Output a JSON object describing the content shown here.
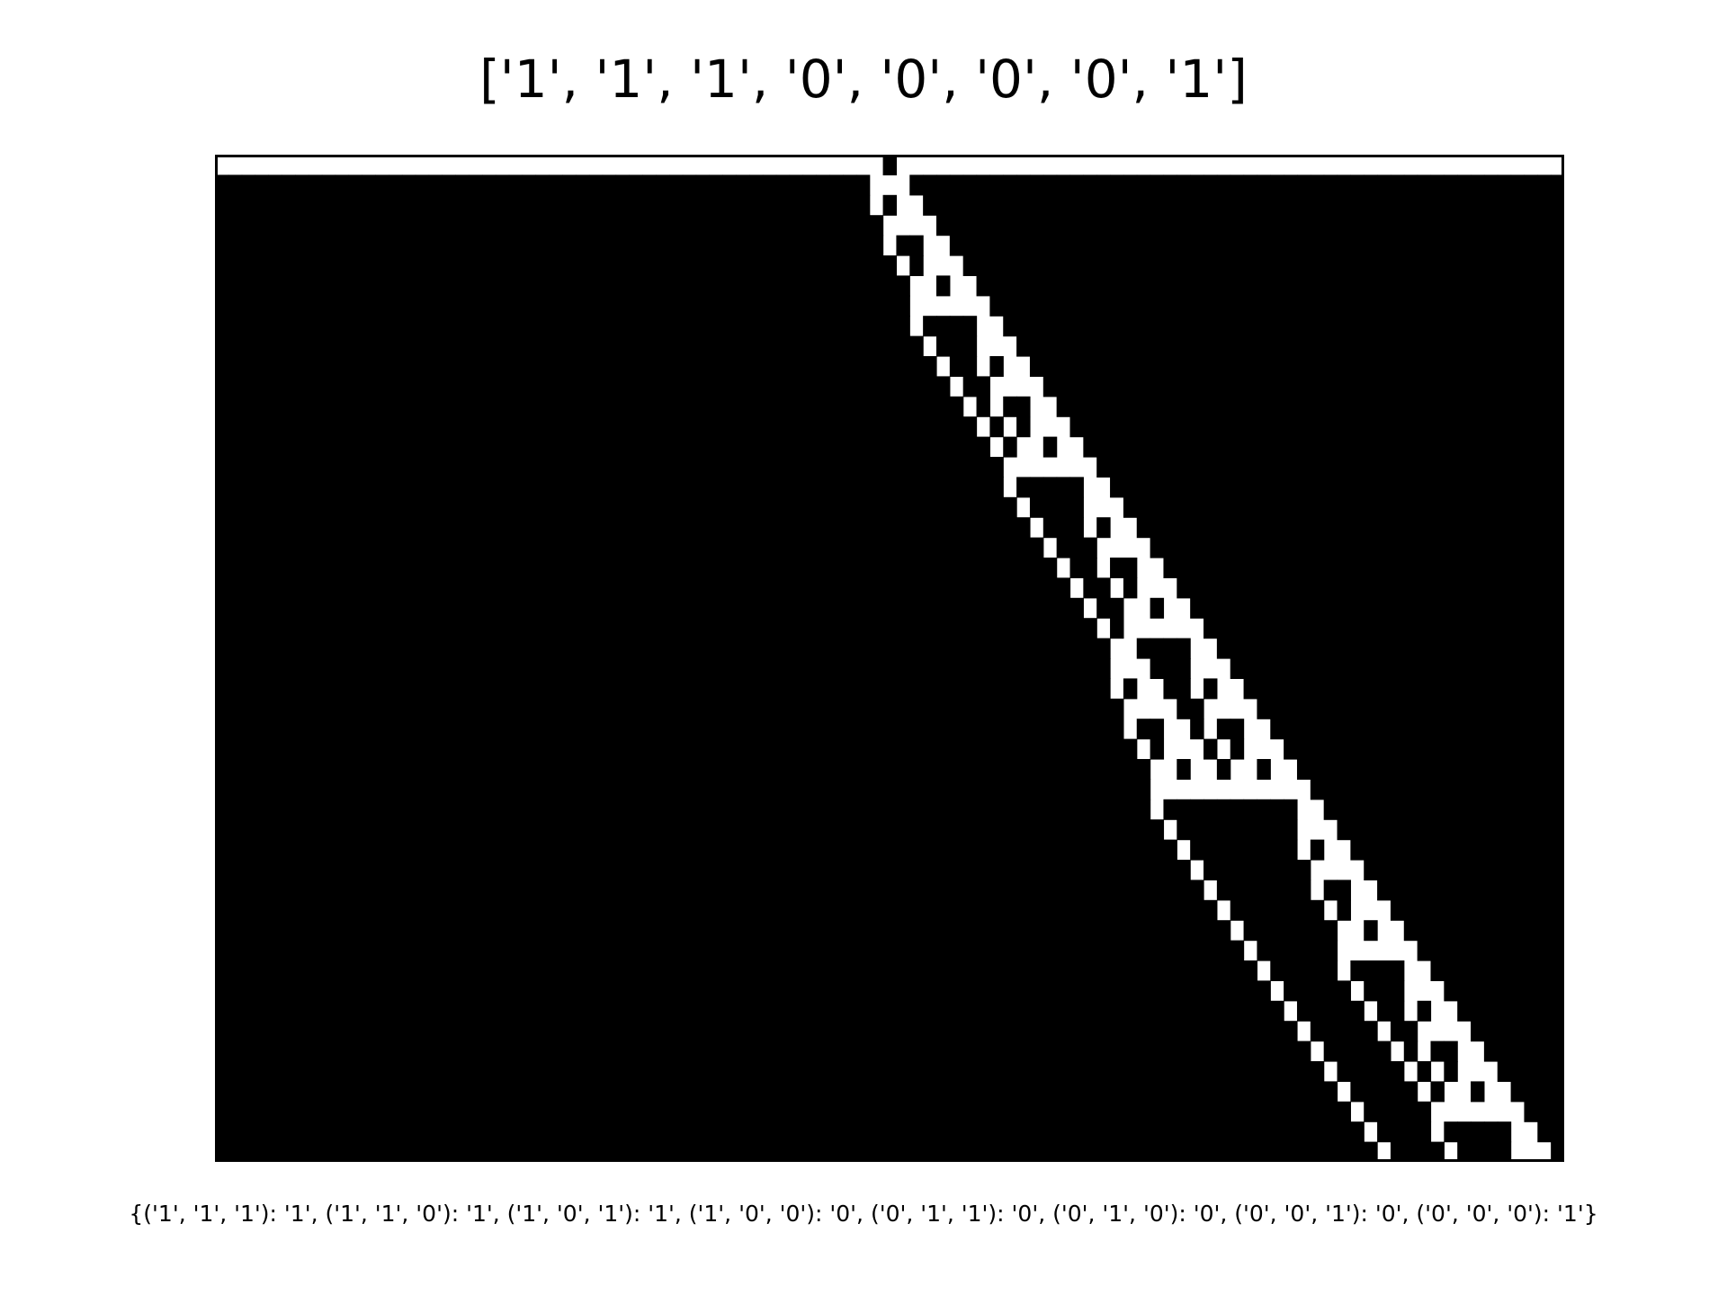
{
  "title": "['1', '1', '1', '0', '0', '0', '0', '1']",
  "caption": "{('1', '1', '1'): '1', ('1', '1', '0'): '1', ('1', '0', '1'): '1', ('1', '0', '0'): '0', ('0', '1', '1'): '0', ('0', '1', '0'): '0', ('0', '0', '1'): '0', ('0', '0', '0'): '1'}",
  "automaton": {
    "rule_bits": [
      "1",
      "1",
      "1",
      "0",
      "0",
      "0",
      "0",
      "1"
    ],
    "rule_table": {
      "111": "1",
      "110": "1",
      "101": "1",
      "100": "0",
      "011": "0",
      "010": "0",
      "001": "0",
      "000": "1"
    },
    "width": 101,
    "generations": 50,
    "initial_live_cell": 50,
    "boundary": "wrap",
    "colors": {
      "live": "#000000",
      "dead": "#ffffff",
      "frame": "#000000"
    }
  }
}
